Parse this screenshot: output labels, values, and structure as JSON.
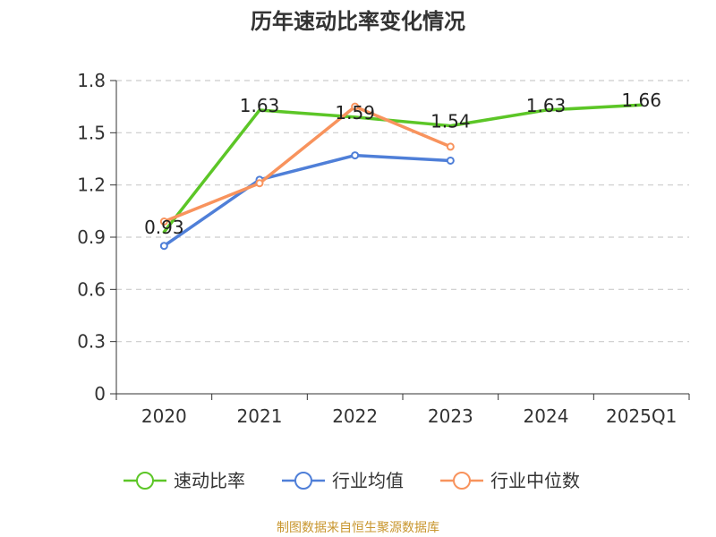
{
  "chart_data": {
    "type": "line",
    "title": "历年速动比率变化情况",
    "categories": [
      "2020",
      "2021",
      "2022",
      "2023",
      "2024",
      "2025Q1"
    ],
    "ylim": [
      0,
      1.8
    ],
    "yticks": [
      "0",
      "0.3",
      "0.6",
      "0.9",
      "1.2",
      "1.5",
      "1.8"
    ],
    "grid": true,
    "legend_position": "bottom",
    "series": [
      {
        "name": "速动比率",
        "color": "#5cc627",
        "values": [
          0.93,
          1.63,
          1.59,
          1.54,
          1.63,
          1.66
        ],
        "labels": [
          "0.93",
          "1.63",
          "1.59",
          "1.54",
          "1.63",
          "1.66"
        ],
        "show_labels": true,
        "show_markers": false
      },
      {
        "name": "行业均值",
        "color": "#4f7fd8",
        "values": [
          0.85,
          1.23,
          1.37,
          1.34,
          null,
          null
        ],
        "show_labels": false,
        "show_markers": true
      },
      {
        "name": "行业中位数",
        "color": "#f8935d",
        "values": [
          0.99,
          1.21,
          1.65,
          1.42,
          null,
          null
        ],
        "show_labels": false,
        "show_markers": true
      }
    ],
    "source": "制图数据来自恒生聚源数据库"
  }
}
